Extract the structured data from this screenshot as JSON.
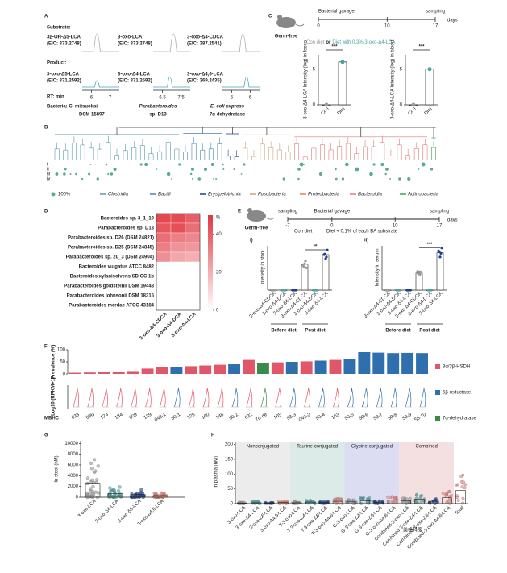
{
  "watermark": "美格科服",
  "panel_a": {
    "letter": "A",
    "substrate_label": "Substrate:",
    "product_label": "Product:",
    "rt_label": "RT: min",
    "columns": [
      {
        "substrate": "3β-OH-Δ5-LCA",
        "substrate_eic": "(EIC: 373.2748)",
        "product": "3-oxo-Δ5-LCA",
        "product_eic": "(EIC: 371.2592)",
        "xticks": [
          6,
          7
        ],
        "organism": "Bacteria: C. mitsuokai",
        "strain": "DSM 15897"
      },
      {
        "substrate": "3-oxo-LCA",
        "substrate_eic": "(EIC: 373.2748)",
        "product": "3-oxo-Δ4-LCA",
        "product_eic": "(EIC: 371.2592)",
        "xticks": [
          6.5,
          7.5
        ],
        "organism": "Parabacteroides",
        "strain": "sp. D13"
      },
      {
        "substrate": "3-oxo-Δ4-CDCA",
        "substrate_eic": "(EIC: 387.2541)",
        "product": "3-oxo-Δ4,6-LCA",
        "product_eic": "(EIC: 369.2435)",
        "xticks": [
          5,
          6
        ],
        "organism": "E. coli express",
        "strain": "7α-dehydratase"
      }
    ]
  },
  "panel_c": {
    "letter": "C",
    "mouse": "Germ-free",
    "gavage": "Bacterial gavage",
    "sampling": "sampling",
    "days": "days",
    "timeline_ticks": [
      0,
      10,
      17
    ],
    "diet_con": "Con diet",
    "diet_or": "or",
    "diet_treat": "Diet with 0.3% 3-oxo-Δ4-LCA",
    "charts": [
      {
        "ylabel": "3-oxo-Δ4-LCA Intensity (log) in feces",
        "categories": [
          "Con",
          "Diet"
        ],
        "values": [
          0,
          6
        ],
        "ylim": [
          0,
          7
        ],
        "yticks": [
          0,
          5
        ],
        "significance": "***"
      },
      {
        "ylabel": "3-oxo-Δ4-LCA Intensity (log) in blood",
        "categories": [
          "Con",
          "Diet"
        ],
        "values": [
          0,
          5
        ],
        "ylim": [
          0,
          7
        ],
        "yticks": [
          0,
          5
        ],
        "significance": "***"
      }
    ]
  },
  "panel_b": {
    "letter": "B",
    "rows": [
      "i",
      "ii",
      "iii",
      "iv"
    ],
    "legend": [
      {
        "name": "100%",
        "color": "#5aa99a"
      },
      {
        "name": "Clostridia",
        "color": "#5a9aa8"
      },
      {
        "name": "Bacilli",
        "color": "#4a7fb0"
      },
      {
        "name": "Erysipelotrichia",
        "color": "#1d3f8a"
      },
      {
        "name": "Fusobacteria",
        "color": "#c9a27a"
      },
      {
        "name": "Proteobacteria",
        "color": "#e08050"
      },
      {
        "name": "Bacteroidia",
        "color": "#e07a7a"
      },
      {
        "name": "Actinobacteria",
        "color": "#3aa060"
      }
    ]
  },
  "panel_d": {
    "letter": "D",
    "rows": [
      "Bacteroides sp. 3_1_19",
      "Parabacteroides sp. D13",
      "Parabacteroides sp. D26 (DSM 24821)",
      "Parabacteroides sp. D25 (DSM 24845)",
      "Parabacteroides sp. 20_3 (DSM 24904)",
      "Bacteroides vulgatus ATCC 8482",
      "Bacteroides xylanisolvens SD CC 1b",
      "Parabacteroides goldsteinii DSM 19448",
      "Parabacteroides johnsonii DSM 18315",
      "Parabacteroides merdae ATCC 43184"
    ],
    "row_colors": [
      "#111",
      "#2e9a3e",
      "#111",
      "#111",
      "#111",
      "#111",
      "#111",
      "#111",
      "#111",
      "#111"
    ],
    "columns": [
      "3-oxo-Δ4-CDCA",
      "3-oxo-Δ4-DCA",
      "3-oxo-Δ4-LCA"
    ],
    "values": [
      [
        46,
        45,
        40
      ],
      [
        42,
        44,
        36
      ],
      [
        36,
        32,
        30
      ],
      [
        32,
        27,
        26
      ],
      [
        28,
        22,
        20
      ],
      [
        0,
        0,
        0
      ],
      [
        0,
        0,
        0
      ],
      [
        0,
        0,
        0
      ],
      [
        0,
        0,
        0
      ],
      [
        0,
        0,
        0
      ]
    ],
    "colorbar_label": "%",
    "colorbar_ticks": [
      0,
      20,
      40
    ],
    "colorbar_lim": [
      0,
      50
    ]
  },
  "panel_e": {
    "letter": "E",
    "mouse": "Germ-free",
    "sampling": "sampling",
    "gavage": "Bacterial gavage",
    "days": "days",
    "timeline_ticks": [
      -7,
      0,
      10,
      17
    ],
    "diet_con": "Con diet",
    "diet_treat": "Diet + 0.1% of each BA substrate",
    "groups": [
      "Before diet",
      "Post diet"
    ],
    "categories": [
      "3-oxo-Δ4-CDCA",
      "3-oxo-Δ4-DCA",
      "3-oxo-Δ4-LCA",
      "3-oxo-Δ4-CDCA",
      "3-oxo-Δ4-DCA",
      "3-oxo-Δ4-LCA"
    ],
    "category_colors": [
      "#999999",
      "#4aa3a0",
      "#1d3f8a",
      "#999999",
      "#4aa3a0",
      "#1d3f8a"
    ],
    "charts": [
      {
        "label": "i)",
        "ylabel": "Intensity in stool",
        "values": [
          0,
          0,
          0,
          38,
          0,
          52
        ],
        "ylim": [
          0,
          65
        ],
        "significance": "**"
      },
      {
        "label": "ii)",
        "ylabel": "Intensity in serum",
        "values": [
          0,
          0,
          0,
          25,
          0,
          55
        ],
        "ylim": [
          0,
          65
        ],
        "significance": "***"
      }
    ]
  },
  "panel_f": {
    "letter": "F",
    "ylabel": "Prevalence (%)",
    "ylim": [
      0,
      100
    ],
    "yticks": [
      0,
      50,
      100
    ],
    "violin_label": "Log10 (RPKM+1)",
    "x_label": "MBHC",
    "categories": [
      "033",
      "096",
      "124",
      "184",
      "009",
      "139",
      "043-1",
      "50-1",
      "125",
      "160",
      "148",
      "50-2",
      "032",
      "7α-de",
      "165",
      "58-3",
      "043-2",
      "50-4",
      "103",
      "50-5",
      "58-6",
      "58-7",
      "58-8",
      "58-9",
      "58-10"
    ],
    "values": [
      5,
      6,
      8,
      10,
      12,
      22,
      30,
      30,
      32,
      35,
      38,
      40,
      58,
      45,
      48,
      50,
      52,
      55,
      58,
      62,
      90,
      88,
      86,
      87,
      86
    ],
    "colors": [
      "#e0576a",
      "#e0576a",
      "#e0576a",
      "#e0576a",
      "#e0576a",
      "#e0576a",
      "#e0576a",
      "#2f6fae",
      "#e0576a",
      "#e0576a",
      "#e0576a",
      "#2f6fae",
      "#e0576a",
      "#3a8a4a",
      "#e0576a",
      "#2f6fae",
      "#e0576a",
      "#2f6fae",
      "#e0576a",
      "#2f6fae",
      "#2f6fae",
      "#2f6fae",
      "#2f6fae",
      "#2f6fae",
      "#2f6fae"
    ],
    "legend": [
      {
        "name": "3α/3β-HSDH",
        "color": "#e0576a"
      },
      {
        "name": "5β-reductase",
        "color": "#2f6fae"
      },
      {
        "name": "7α-dehydratase",
        "color": "#3a8a4a"
      }
    ]
  },
  "panel_g": {
    "letter": "G",
    "ylabel": "In stool (nM)",
    "ylim": [
      0,
      10500
    ],
    "yticks": [
      0,
      2000,
      4000,
      6000,
      8000,
      10000
    ],
    "categories": [
      "3-oxo-LCA",
      "3-oxo-Δ4-LCA",
      "3-oxo-Δ6-LCA",
      "3-oxo-Δ4,6-LCA"
    ],
    "colors": [
      "#999999",
      "#4aa3a0",
      "#1d3f8a",
      "#e8837a"
    ],
    "values": [
      2600,
      700,
      500,
      300
    ]
  },
  "panel_h": {
    "letter": "H",
    "ylabel": "In plasma (nM)",
    "ylim": [
      0,
      210
    ],
    "yticks": [
      0,
      50,
      100,
      150,
      200
    ],
    "groups": [
      {
        "name": "Nonconjugated",
        "color": "#ececec"
      },
      {
        "name": "Taurine-conjugated",
        "color": "#dcebe8"
      },
      {
        "name": "Glycine-conjugated",
        "color": "#dcdcf2"
      },
      {
        "name": "Combined",
        "color": "#f4e0e0"
      }
    ],
    "categories": [
      "3-oxo-LCA",
      "3-oxo-Δ4-LCA",
      "3-oxo-Δ6-LCA",
      "3-oxo-Δ4,6-LCA",
      "T-3-oxo-LCA",
      "T-3-oxo-Δ4-LCA",
      "T-3-oxo-Δ6-LCA",
      "T-3-oxo-Δ4,6-LCA",
      "G-3-oxo-LCA",
      "G-3-oxo-Δ4-LCA",
      "G-3-oxo-Δ6-LCA",
      "G-3-oxo-Δ4,6-LCA",
      "Combined-3-oxo-LCA",
      "Combined-3-oxo-Δ4-LCA",
      "Combined-3-oxo-Δ6-LCA",
      "Combined-3-oxo-Δ4,6-LCA",
      "Total"
    ],
    "colors": [
      "#999999",
      "#4aa3a0",
      "#1d3f8a",
      "#e8837a",
      "#999999",
      "#4aa3a0",
      "#1d3f8a",
      "#e8837a",
      "#999999",
      "#4aa3a0",
      "#1d3f8a",
      "#e8837a",
      "#999999",
      "#4aa3a0",
      "#1d3f8a",
      "#e8837a",
      "#e8837a"
    ],
    "values": [
      2,
      3,
      2,
      4,
      3,
      5,
      3,
      8,
      6,
      10,
      5,
      12,
      10,
      15,
      8,
      20,
      45
    ]
  }
}
